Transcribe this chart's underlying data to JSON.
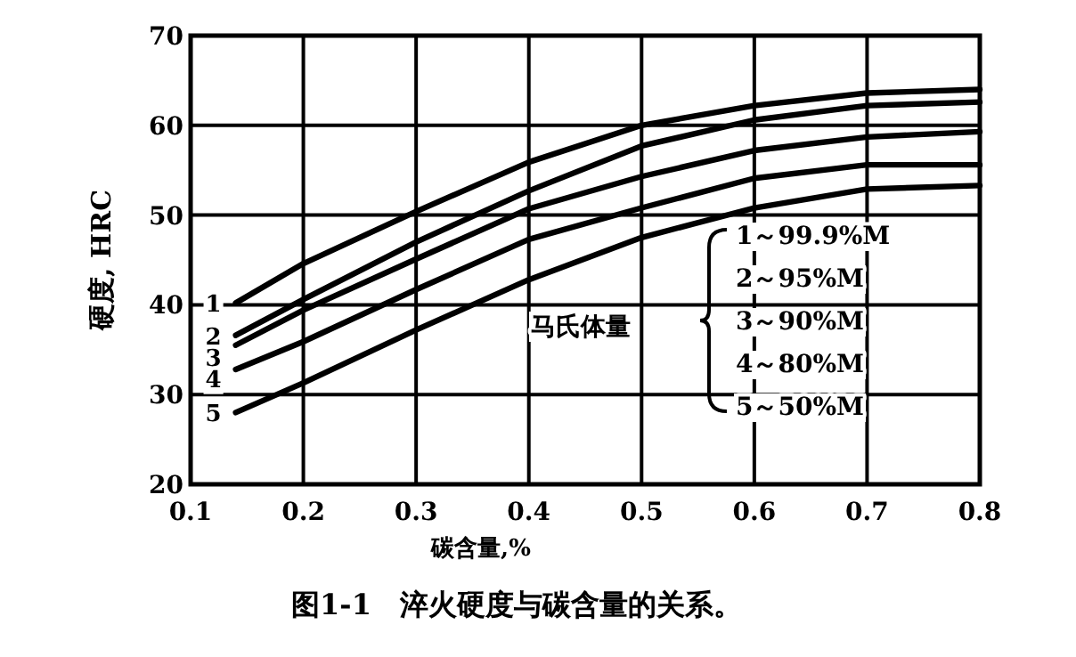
{
  "chart_data": {
    "type": "line",
    "title": "图1-1　淬火硬度与碳含量的关系。",
    "xlabel": "碳含量,%",
    "ylabel": "硬度, HRC",
    "xlim": [
      0.1,
      0.8
    ],
    "xticks": [
      0.1,
      0.2,
      0.3,
      0.4,
      0.5,
      0.6,
      0.7,
      0.8
    ],
    "ylim": [
      20,
      70
    ],
    "yticks": [
      20,
      30,
      40,
      50,
      60,
      70
    ],
    "grid": true,
    "marker": "none",
    "line_style": "solid",
    "x": [
      0.14,
      0.2,
      0.3,
      0.4,
      0.5,
      0.6,
      0.7,
      0.8
    ],
    "series": [
      {
        "name": "1",
        "color": "#000000",
        "values": [
          40.2,
          44.6,
          50.4,
          55.9,
          60.0,
          62.2,
          63.6,
          64.0
        ]
      },
      {
        "name": "2",
        "color": "#000000",
        "values": [
          36.6,
          40.6,
          47.0,
          52.7,
          57.7,
          60.6,
          62.2,
          62.6
        ]
      },
      {
        "name": "3",
        "color": "#000000",
        "values": [
          35.5,
          39.4,
          45.1,
          50.7,
          54.3,
          57.2,
          58.7,
          59.3
        ]
      },
      {
        "name": "4",
        "color": "#000000",
        "values": [
          32.8,
          35.9,
          41.7,
          47.3,
          50.8,
          54.1,
          55.6,
          55.6
        ]
      },
      {
        "name": "5",
        "color": "#000000",
        "values": [
          28.0,
          31.3,
          37.2,
          42.8,
          47.5,
          50.8,
          52.9,
          53.3
        ]
      }
    ],
    "annotations": [
      "马氏体量",
      "1～99.9%M",
      "2～95%M",
      "3～90%M",
      "4～80%M",
      "5～50%M"
    ]
  }
}
